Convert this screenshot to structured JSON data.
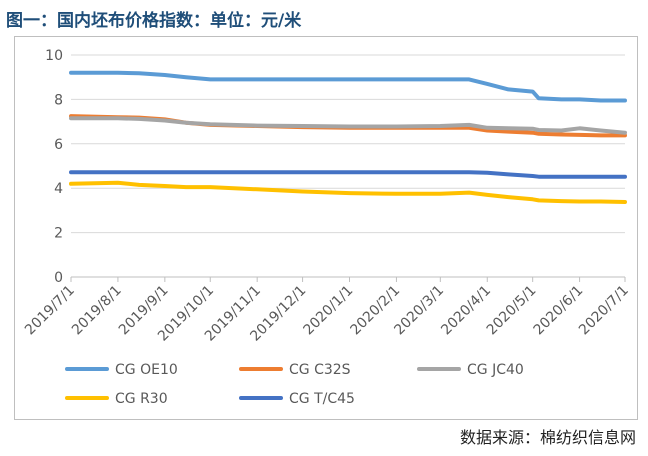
{
  "title": "图一：国内坯布价格指数：单位：元/米",
  "source": "数据来源：棉纺织信息网",
  "chart_data": {
    "type": "line",
    "title": "图一：国内坯布价格指数：单位：元/米",
    "xlabel": "",
    "ylabel": "",
    "ylim": [
      0,
      10
    ],
    "yticks": [
      0,
      2,
      4,
      6,
      8,
      10
    ],
    "grid": "horizontal",
    "legend_position": "bottom",
    "x_tick_labels": [
      "2019/7/1",
      "2019/8/1",
      "2019/9/1",
      "2019/10/1",
      "2019/11/1",
      "2019/12/1",
      "2020/1/1",
      "2020/2/1",
      "2020/3/1",
      "2020/4/1",
      "2020/5/1",
      "2020/6/1",
      "2020/7/1"
    ],
    "x": [
      "2019/7/1",
      "2019/8/1",
      "2019/8/15",
      "2019/9/1",
      "2019/9/15",
      "2019/10/1",
      "2019/11/1",
      "2019/12/1",
      "2020/1/1",
      "2020/2/1",
      "2020/3/1",
      "2020/3/20",
      "2020/4/1",
      "2020/4/15",
      "2020/5/1",
      "2020/5/5",
      "2020/5/20",
      "2020/6/1",
      "2020/6/15",
      "2020/7/1"
    ],
    "series": [
      {
        "name": "CG OE10",
        "color": "#5b9bd5",
        "values": [
          9.2,
          9.2,
          9.18,
          9.1,
          9.0,
          8.9,
          8.9,
          8.9,
          8.9,
          8.9,
          8.9,
          8.9,
          8.7,
          8.45,
          8.35,
          8.05,
          8.0,
          8.0,
          7.95,
          7.95
        ]
      },
      {
        "name": "CG C32S",
        "color": "#ed7d31",
        "values": [
          7.25,
          7.2,
          7.18,
          7.1,
          6.95,
          6.85,
          6.8,
          6.75,
          6.72,
          6.72,
          6.72,
          6.72,
          6.6,
          6.55,
          6.5,
          6.45,
          6.42,
          6.4,
          6.38,
          6.38
        ]
      },
      {
        "name": "CG JC40",
        "color": "#a5a5a5",
        "values": [
          7.15,
          7.15,
          7.12,
          7.05,
          6.95,
          6.88,
          6.82,
          6.8,
          6.78,
          6.78,
          6.8,
          6.85,
          6.72,
          6.7,
          6.68,
          6.62,
          6.6,
          6.7,
          6.6,
          6.5
        ]
      },
      {
        "name": "CG R30",
        "color": "#ffc000",
        "values": [
          4.2,
          4.25,
          4.15,
          4.1,
          4.05,
          4.05,
          3.95,
          3.85,
          3.78,
          3.75,
          3.75,
          3.8,
          3.7,
          3.6,
          3.5,
          3.45,
          3.42,
          3.4,
          3.4,
          3.38
        ]
      },
      {
        "name": "CG T/C45",
        "color": "#4472c4",
        "values": [
          4.72,
          4.72,
          4.72,
          4.72,
          4.72,
          4.72,
          4.72,
          4.72,
          4.72,
          4.72,
          4.72,
          4.72,
          4.7,
          4.62,
          4.55,
          4.52,
          4.52,
          4.52,
          4.52,
          4.52
        ]
      }
    ]
  }
}
